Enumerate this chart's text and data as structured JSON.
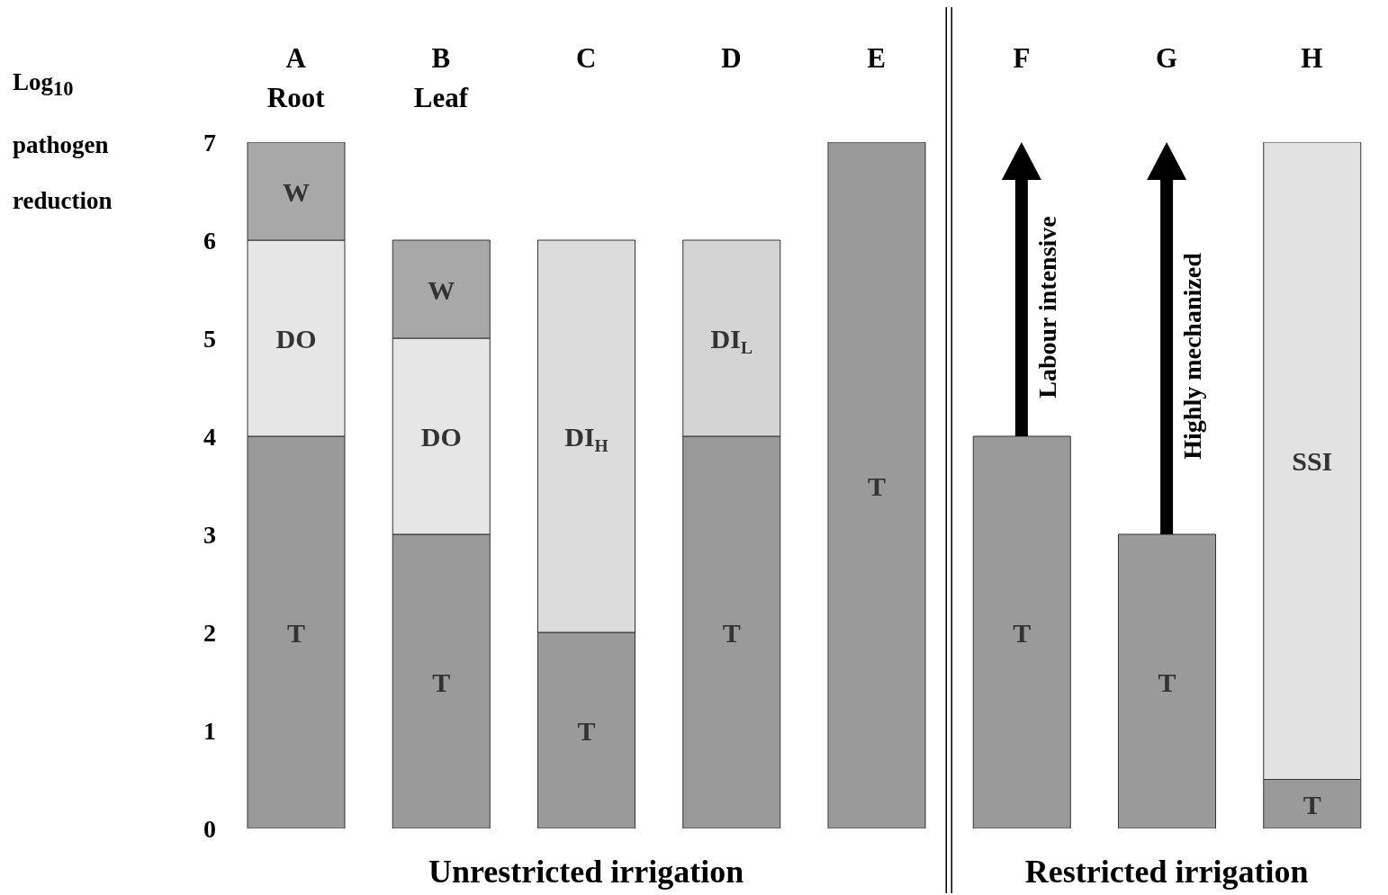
{
  "chart_data": {
    "type": "bar",
    "stacked": true,
    "ylabel": "Log$_{10}$ pathogen reduction",
    "categories": [
      "A\nRoot",
      "B\nLeaf",
      "C",
      "D",
      "E",
      "F",
      "G",
      "H"
    ],
    "series": [
      {
        "name": "T",
        "color": "#9a9a9a",
        "values": [
          4,
          3,
          2,
          4,
          7,
          4,
          3,
          0.5
        ]
      },
      {
        "name": "DO",
        "color": "#e6e6e6",
        "values": [
          2,
          2,
          null,
          null,
          null,
          null,
          null,
          null
        ]
      },
      {
        "name": "DI$_{H}$",
        "color": "#dcdcdc",
        "values": [
          null,
          null,
          4,
          null,
          null,
          null,
          null,
          null
        ]
      },
      {
        "name": "DI$_{L}$",
        "color": "#d4d4d4",
        "values": [
          null,
          null,
          null,
          2,
          null,
          null,
          null,
          null
        ]
      },
      {
        "name": "SSI",
        "color": "#e2e2e2",
        "values": [
          null,
          null,
          null,
          null,
          null,
          null,
          null,
          6.5
        ]
      },
      {
        "name": "W",
        "color": "#a8a8a8",
        "values": [
          1,
          1,
          null,
          null,
          null,
          null,
          null,
          null
        ]
      }
    ],
    "ylim": [
      0,
      7
    ],
    "yticks": [
      0,
      1,
      2,
      3,
      4,
      5,
      6,
      7
    ],
    "grid": false,
    "legend": false,
    "annotations": [
      "Labour intensive",
      "Highly mechanized",
      "Unrestricted irrigation",
      "Restricted irrigation"
    ]
  }
}
